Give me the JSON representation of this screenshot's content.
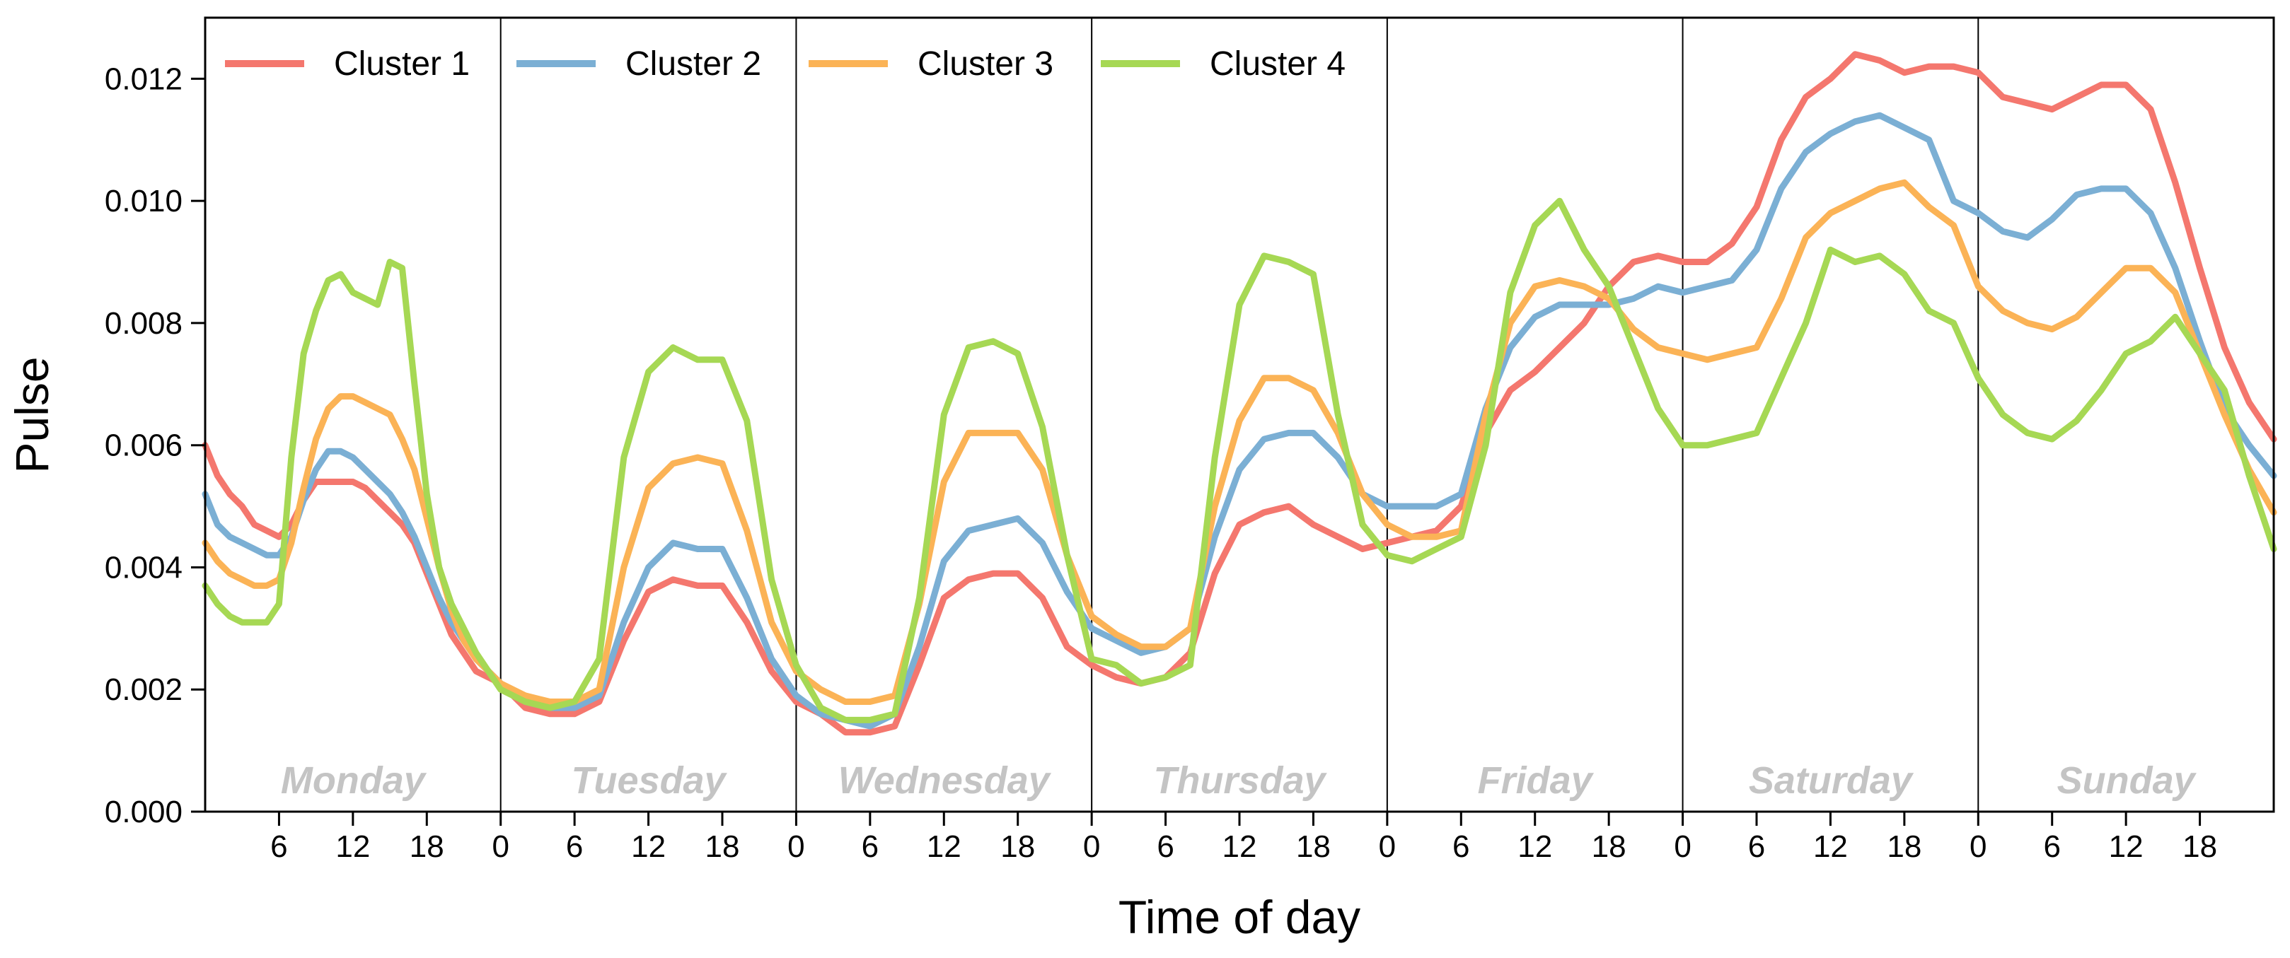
{
  "chart_data": {
    "type": "line",
    "title": "",
    "xlabel": "Time of day",
    "ylabel": "Pulse",
    "ylim": [
      0,
      0.013
    ],
    "yticks": [
      "0.000",
      "0.002",
      "0.004",
      "0.006",
      "0.008",
      "0.010",
      "0.012"
    ],
    "xlim_hours": [
      0,
      168
    ],
    "day_tick_labels": [
      "0",
      "6",
      "12",
      "18"
    ],
    "days": [
      "Monday",
      "Tuesday",
      "Wednesday",
      "Thursday",
      "Friday",
      "Saturday",
      "Sunday"
    ],
    "legend_position": "top-left",
    "series": [
      {
        "name": "Cluster 1",
        "color": "#f4776e",
        "x": [
          0,
          1,
          2,
          3,
          4,
          5,
          6,
          7,
          8,
          9,
          10,
          11,
          12,
          13,
          14,
          15,
          16,
          17,
          18,
          19,
          20,
          21,
          22,
          24,
          26,
          28,
          30,
          32,
          34,
          36,
          38,
          40,
          42,
          44,
          46,
          48,
          50,
          52,
          54,
          56,
          58,
          60,
          62,
          64,
          66,
          68,
          70,
          72,
          74,
          76,
          78,
          80,
          82,
          84,
          86,
          88,
          90,
          92,
          94,
          96,
          98,
          100,
          102,
          104,
          106,
          108,
          110,
          112,
          114,
          116,
          118,
          120,
          122,
          124,
          126,
          128,
          130,
          132,
          134,
          136,
          138,
          140,
          142,
          144,
          146,
          148,
          150,
          152,
          154,
          156,
          158,
          160,
          162,
          164,
          166,
          168
        ],
        "values": [
          0.006,
          0.0055,
          0.0052,
          0.005,
          0.0047,
          0.0046,
          0.0045,
          0.0047,
          0.0051,
          0.0054,
          0.0054,
          0.0054,
          0.0054,
          0.0053,
          0.0051,
          0.0049,
          0.0047,
          0.0044,
          0.0039,
          0.0034,
          0.0029,
          0.0026,
          0.0023,
          0.0021,
          0.0017,
          0.0016,
          0.0016,
          0.0018,
          0.0028,
          0.0036,
          0.0038,
          0.0037,
          0.0037,
          0.0031,
          0.0023,
          0.0018,
          0.0016,
          0.0013,
          0.0013,
          0.0014,
          0.0024,
          0.0035,
          0.0038,
          0.0039,
          0.0039,
          0.0035,
          0.0027,
          0.0024,
          0.0022,
          0.0021,
          0.0022,
          0.0026,
          0.0039,
          0.0047,
          0.0049,
          0.005,
          0.0047,
          0.0045,
          0.0043,
          0.0044,
          0.0045,
          0.0046,
          0.005,
          0.0062,
          0.0069,
          0.0072,
          0.0076,
          0.008,
          0.0086,
          0.009,
          0.0091,
          0.009,
          0.009,
          0.0093,
          0.0099,
          0.011,
          0.0117,
          0.012,
          0.0124,
          0.0123,
          0.0121,
          0.0122,
          0.0122,
          0.0121,
          0.0117,
          0.0116,
          0.0115,
          0.0117,
          0.0119,
          0.0119,
          0.0115,
          0.0103,
          0.0089,
          0.0076,
          0.0067,
          0.0061
        ]
      },
      {
        "name": "Cluster 2",
        "color": "#7bafd4",
        "x": [
          0,
          1,
          2,
          3,
          4,
          5,
          6,
          7,
          8,
          9,
          10,
          11,
          12,
          13,
          14,
          15,
          16,
          17,
          18,
          19,
          20,
          21,
          22,
          24,
          26,
          28,
          30,
          32,
          34,
          36,
          38,
          40,
          42,
          44,
          46,
          48,
          50,
          52,
          54,
          56,
          58,
          60,
          62,
          64,
          66,
          68,
          70,
          72,
          74,
          76,
          78,
          80,
          82,
          84,
          86,
          88,
          90,
          92,
          94,
          96,
          98,
          100,
          102,
          104,
          106,
          108,
          110,
          112,
          114,
          116,
          118,
          120,
          122,
          124,
          126,
          128,
          130,
          132,
          134,
          136,
          138,
          140,
          142,
          144,
          146,
          148,
          150,
          152,
          154,
          156,
          158,
          160,
          162,
          164,
          166,
          168
        ],
        "values": [
          0.0052,
          0.0047,
          0.0045,
          0.0044,
          0.0043,
          0.0042,
          0.0042,
          0.0045,
          0.0051,
          0.0056,
          0.0059,
          0.0059,
          0.0058,
          0.0056,
          0.0054,
          0.0052,
          0.0049,
          0.0045,
          0.004,
          0.0035,
          0.0031,
          0.0028,
          0.0025,
          0.0021,
          0.0018,
          0.0017,
          0.0017,
          0.0019,
          0.0031,
          0.004,
          0.0044,
          0.0043,
          0.0043,
          0.0035,
          0.0025,
          0.0019,
          0.0016,
          0.0015,
          0.0014,
          0.0016,
          0.0027,
          0.0041,
          0.0046,
          0.0047,
          0.0048,
          0.0044,
          0.0036,
          0.003,
          0.0028,
          0.0026,
          0.0027,
          0.003,
          0.0045,
          0.0056,
          0.0061,
          0.0062,
          0.0062,
          0.0058,
          0.0052,
          0.005,
          0.005,
          0.005,
          0.0052,
          0.0066,
          0.0076,
          0.0081,
          0.0083,
          0.0083,
          0.0083,
          0.0084,
          0.0086,
          0.0085,
          0.0086,
          0.0087,
          0.0092,
          0.0102,
          0.0108,
          0.0111,
          0.0113,
          0.0114,
          0.0112,
          0.011,
          0.01,
          0.0098,
          0.0095,
          0.0094,
          0.0097,
          0.0101,
          0.0102,
          0.0102,
          0.0098,
          0.0089,
          0.0077,
          0.0066,
          0.006,
          0.0055
        ]
      },
      {
        "name": "Cluster 3",
        "color": "#fbb356",
        "x": [
          0,
          1,
          2,
          3,
          4,
          5,
          6,
          7,
          8,
          9,
          10,
          11,
          12,
          13,
          14,
          15,
          16,
          17,
          18,
          19,
          20,
          21,
          22,
          24,
          26,
          28,
          30,
          32,
          34,
          36,
          38,
          40,
          42,
          44,
          46,
          48,
          50,
          52,
          54,
          56,
          58,
          60,
          62,
          64,
          66,
          68,
          70,
          72,
          74,
          76,
          78,
          80,
          82,
          84,
          86,
          88,
          90,
          92,
          94,
          96,
          98,
          100,
          102,
          104,
          106,
          108,
          110,
          112,
          114,
          116,
          118,
          120,
          122,
          124,
          126,
          128,
          130,
          132,
          134,
          136,
          138,
          140,
          142,
          144,
          146,
          148,
          150,
          152,
          154,
          156,
          158,
          160,
          162,
          164,
          166,
          168
        ],
        "values": [
          0.0044,
          0.0041,
          0.0039,
          0.0038,
          0.0037,
          0.0037,
          0.0038,
          0.0044,
          0.0053,
          0.0061,
          0.0066,
          0.0068,
          0.0068,
          0.0067,
          0.0066,
          0.0065,
          0.0061,
          0.0056,
          0.0048,
          0.004,
          0.0033,
          0.0028,
          0.0025,
          0.0021,
          0.0019,
          0.0018,
          0.0018,
          0.002,
          0.004,
          0.0053,
          0.0057,
          0.0058,
          0.0057,
          0.0046,
          0.0031,
          0.0023,
          0.002,
          0.0018,
          0.0018,
          0.0019,
          0.0034,
          0.0054,
          0.0062,
          0.0062,
          0.0062,
          0.0056,
          0.0042,
          0.0032,
          0.0029,
          0.0027,
          0.0027,
          0.003,
          0.005,
          0.0064,
          0.0071,
          0.0071,
          0.0069,
          0.0062,
          0.0052,
          0.0047,
          0.0045,
          0.0045,
          0.0046,
          0.0065,
          0.008,
          0.0086,
          0.0087,
          0.0086,
          0.0084,
          0.0079,
          0.0076,
          0.0075,
          0.0074,
          0.0075,
          0.0076,
          0.0084,
          0.0094,
          0.0098,
          0.01,
          0.0102,
          0.0103,
          0.0099,
          0.0096,
          0.0086,
          0.0082,
          0.008,
          0.0079,
          0.0081,
          0.0085,
          0.0089,
          0.0089,
          0.0085,
          0.0075,
          0.0065,
          0.0056,
          0.0049
        ]
      },
      {
        "name": "Cluster 4",
        "color": "#a6d854",
        "x": [
          0,
          1,
          2,
          3,
          4,
          5,
          6,
          7,
          8,
          9,
          10,
          11,
          12,
          13,
          14,
          15,
          16,
          17,
          18,
          19,
          20,
          21,
          22,
          24,
          26,
          28,
          30,
          32,
          34,
          36,
          38,
          40,
          42,
          44,
          46,
          48,
          50,
          52,
          54,
          56,
          58,
          60,
          62,
          64,
          66,
          68,
          70,
          72,
          74,
          76,
          78,
          80,
          82,
          84,
          86,
          88,
          90,
          92,
          94,
          96,
          98,
          100,
          102,
          104,
          106,
          108,
          110,
          112,
          114,
          116,
          118,
          120,
          122,
          124,
          126,
          128,
          130,
          132,
          134,
          136,
          138,
          140,
          142,
          144,
          146,
          148,
          150,
          152,
          154,
          156,
          158,
          160,
          162,
          164,
          166,
          168
        ],
        "values": [
          0.0037,
          0.0034,
          0.0032,
          0.0031,
          0.0031,
          0.0031,
          0.0034,
          0.0058,
          0.0075,
          0.0082,
          0.0087,
          0.0088,
          0.0085,
          0.0084,
          0.0083,
          0.009,
          0.0089,
          0.007,
          0.0052,
          0.004,
          0.0034,
          0.003,
          0.0026,
          0.002,
          0.0018,
          0.0017,
          0.0018,
          0.0025,
          0.0058,
          0.0072,
          0.0076,
          0.0074,
          0.0074,
          0.0064,
          0.0038,
          0.0024,
          0.0017,
          0.0015,
          0.0015,
          0.0016,
          0.0035,
          0.0065,
          0.0076,
          0.0077,
          0.0075,
          0.0063,
          0.0042,
          0.0025,
          0.0024,
          0.0021,
          0.0022,
          0.0024,
          0.0058,
          0.0083,
          0.0091,
          0.009,
          0.0088,
          0.0065,
          0.0047,
          0.0042,
          0.0041,
          0.0043,
          0.0045,
          0.006,
          0.0085,
          0.0096,
          0.01,
          0.0092,
          0.0086,
          0.0076,
          0.0066,
          0.006,
          0.006,
          0.0061,
          0.0062,
          0.0071,
          0.008,
          0.0092,
          0.009,
          0.0091,
          0.0088,
          0.0082,
          0.008,
          0.0071,
          0.0065,
          0.0062,
          0.0061,
          0.0064,
          0.0069,
          0.0075,
          0.0077,
          0.0081,
          0.0075,
          0.0069,
          0.0055,
          0.0043
        ]
      }
    ]
  }
}
